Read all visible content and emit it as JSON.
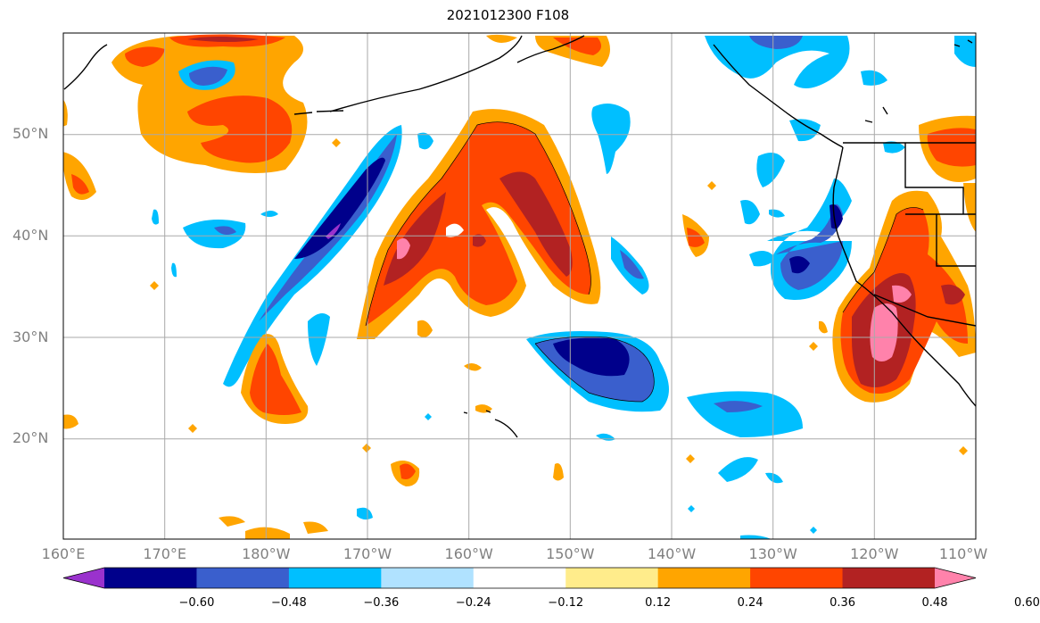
{
  "title": "2021012300 F108",
  "lat_labels": [
    "50°N",
    "40°N",
    "30°N",
    "20°N"
  ],
  "lon_labels": [
    "160°E",
    "170°E",
    "180°W",
    "170°W",
    "160°W",
    "150°W",
    "140°W",
    "130°W",
    "120°W",
    "110°W"
  ],
  "colorbar": {
    "ticks": [
      "−0.60",
      "−0.48",
      "−0.36",
      "−0.24",
      "−0.12",
      "0.12",
      "0.24",
      "0.36",
      "0.48",
      "0.60"
    ],
    "colors": [
      "#9a32cd",
      "#00008b",
      "#3a5fcd",
      "#00bfff",
      "#b0e2ff",
      "#ffffff",
      "#ffec8b",
      "#ffa500",
      "#ff4500",
      "#b22222",
      "#ff82ab"
    ]
  },
  "map": {
    "projection": "plate-carree",
    "lon_range": "160°E–110°W",
    "lat_range": "about 10°N–60°N",
    "gridlines": true,
    "coastlines": true
  }
}
